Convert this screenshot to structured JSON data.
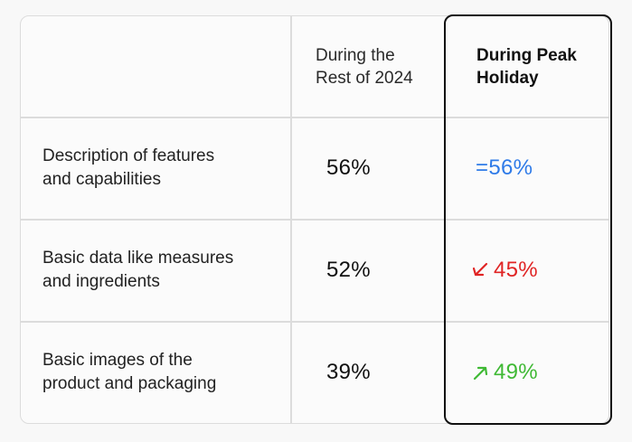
{
  "table": {
    "headers": {
      "col1": "",
      "col2_line1": "During the",
      "col2_line2": "Rest of 2024",
      "col3_line1": "During Peak",
      "col3_line2": "Holiday"
    },
    "rows": [
      {
        "label_line1": "Description of features",
        "label_line2": "and capabilities",
        "rest_of_year": "56%",
        "peak_holiday": "=56%",
        "peak_trend": "equal",
        "peak_color": "#2f7be8"
      },
      {
        "label_line1": "Basic data like measures",
        "label_line2": "and ingredients",
        "rest_of_year": "52%",
        "peak_holiday": "45%",
        "peak_trend": "down",
        "peak_color": "#e02424"
      },
      {
        "label_line1": "Basic images of the",
        "label_line2": "product and packaging",
        "rest_of_year": "39%",
        "peak_holiday": "49%",
        "peak_trend": "up",
        "peak_color": "#3fb934"
      }
    ]
  }
}
